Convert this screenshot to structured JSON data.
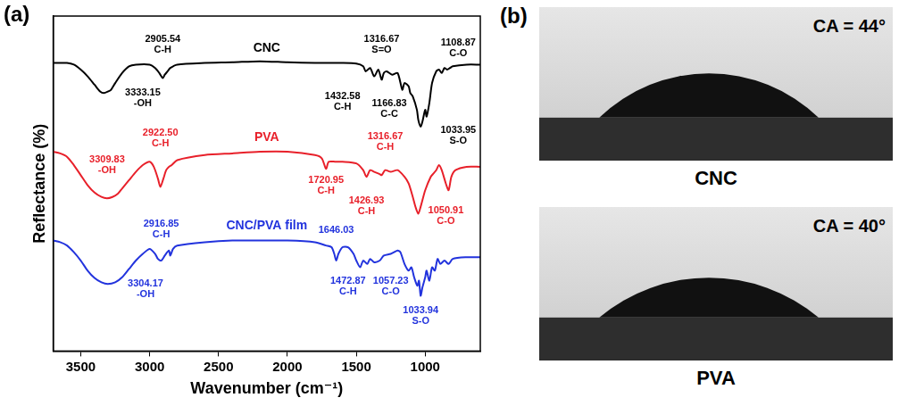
{
  "chart_data": {
    "type": "line",
    "panel": "(a)",
    "x_label": "Wavenumber (cm⁻¹)",
    "y_label": "Reflectance (%)",
    "xlim": [
      3700,
      600
    ],
    "xticks": [
      3500,
      3000,
      2500,
      2000,
      1500,
      1000
    ],
    "ylim": [
      0,
      100
    ],
    "tick_labels": "x",
    "grid": false,
    "series": [
      {
        "name": "CNC",
        "color": "#000000",
        "x": [
          3700,
          3600,
          3550,
          3500,
          3450,
          3400,
          3360,
          3333,
          3300,
          3280,
          3250,
          3200,
          3150,
          3100,
          3000,
          2960,
          2930,
          2905,
          2890,
          2870,
          2850,
          2800,
          2600,
          2400,
          2200,
          2000,
          1800,
          1600,
          1500,
          1450,
          1432,
          1400,
          1370,
          1340,
          1316,
          1300,
          1280,
          1240,
          1200,
          1166,
          1150,
          1120,
          1108,
          1090,
          1060,
          1050,
          1033,
          1020,
          1000,
          990,
          970,
          950,
          920,
          900,
          880,
          860,
          840,
          820,
          800,
          700,
          600
        ],
        "values": [
          86,
          86,
          85.5,
          84,
          82,
          79.5,
          77.5,
          77,
          77.5,
          78,
          80,
          83,
          85,
          85.5,
          85.5,
          84.5,
          83,
          81.5,
          82.5,
          83.5,
          84.5,
          85.5,
          86,
          86.2,
          86.5,
          86.2,
          86,
          86,
          85.8,
          85,
          83.5,
          84.5,
          82,
          84,
          81,
          83,
          83.5,
          82.5,
          83,
          78,
          80,
          79,
          77,
          76,
          72,
          69,
          67,
          68.5,
          72,
          70,
          74,
          80,
          83.5,
          84,
          83,
          84.5,
          84,
          84.5,
          85,
          85.5,
          85.5
        ],
        "annotations": [
          {
            "text": [
              "3333.15",
              "-OH"
            ],
            "x": 3050,
            "y": 77
          },
          {
            "text": [
              "2905.54",
              "C-H"
            ],
            "x": 2905,
            "y": 93
          },
          {
            "text": [
              "1432.58",
              "C-H"
            ],
            "x": 1600,
            "y": 76
          },
          {
            "text": [
              "1316.67",
              "S=O"
            ],
            "x": 1316,
            "y": 93
          },
          {
            "text": [
              "1166.83",
              "C-C"
            ],
            "x": 1260,
            "y": 74
          },
          {
            "text": [
              "1108.87",
              "C-O"
            ],
            "x": 760,
            "y": 92
          },
          {
            "text": [
              "1033.95",
              "S-O"
            ],
            "x": 760,
            "y": 66
          }
        ]
      },
      {
        "name": "PVA",
        "color": "#e8202a",
        "x": [
          3700,
          3650,
          3600,
          3550,
          3500,
          3450,
          3400,
          3350,
          3310,
          3270,
          3230,
          3200,
          3150,
          3100,
          3050,
          3000,
          2970,
          2940,
          2922,
          2900,
          2880,
          2860,
          2840,
          2800,
          2600,
          2400,
          2200,
          2000,
          1800,
          1750,
          1720,
          1700,
          1650,
          1600,
          1500,
          1450,
          1426,
          1400,
          1370,
          1330,
          1316,
          1290,
          1250,
          1200,
          1150,
          1120,
          1090,
          1070,
          1050,
          1030,
          1000,
          960,
          940,
          920,
          900,
          880,
          850,
          830,
          810,
          780,
          700,
          600
        ],
        "values": [
          59.5,
          59,
          58,
          55.5,
          52.5,
          49.5,
          47.3,
          46,
          45.6,
          46,
          47,
          48.5,
          51,
          53.5,
          55.5,
          56.5,
          55,
          51.5,
          49,
          51.5,
          54,
          55,
          55.5,
          57,
          58.5,
          59,
          59.5,
          59.5,
          58.5,
          57.5,
          54.4,
          56.5,
          56.5,
          56.5,
          56,
          54,
          52,
          54,
          53.5,
          52.8,
          52.5,
          54,
          53.5,
          54,
          52,
          50,
          46,
          43,
          41,
          43.5,
          48,
          52,
          53,
          54,
          55.5,
          54,
          50,
          48,
          52,
          54,
          55,
          55
        ],
        "annotations": [
          {
            "text": [
              "3309.83",
              "-OH"
            ],
            "x": 3309,
            "y": 57
          },
          {
            "text": [
              "2922.50",
              "C-H"
            ],
            "x": 2922,
            "y": 65
          },
          {
            "text": [
              "1720.95",
              "C-H"
            ],
            "x": 1720,
            "y": 51
          },
          {
            "text": [
              "1426.93",
              "C-H"
            ],
            "x": 1426,
            "y": 45
          },
          {
            "text": [
              "1316.67",
              "C-H"
            ],
            "x": 1290,
            "y": 64
          },
          {
            "text": [
              "1050.91",
              "C-O"
            ],
            "x": 850,
            "y": 42
          }
        ]
      },
      {
        "name": "CNC/PVA film",
        "color": "#2233dd",
        "x": [
          3700,
          3650,
          3600,
          3550,
          3500,
          3450,
          3400,
          3350,
          3304,
          3250,
          3200,
          3150,
          3100,
          3050,
          3000,
          2960,
          2940,
          2916,
          2890,
          2860,
          2850,
          2830,
          2800,
          2600,
          2400,
          2200,
          2000,
          1800,
          1720,
          1680,
          1660,
          1646,
          1630,
          1600,
          1560,
          1520,
          1500,
          1472,
          1450,
          1420,
          1400,
          1370,
          1330,
          1300,
          1250,
          1200,
          1180,
          1150,
          1120,
          1100,
          1080,
          1057,
          1045,
          1033,
          1020,
          1000,
          990,
          970,
          950,
          930,
          910,
          890,
          860,
          830,
          800,
          700,
          600
        ],
        "values": [
          33,
          32.5,
          31.5,
          29.5,
          27,
          24,
          21.8,
          20.5,
          20,
          20.5,
          22,
          24.5,
          27,
          29,
          30.5,
          29,
          27.5,
          27,
          28.5,
          30,
          28.5,
          30.5,
          31.5,
          32.5,
          33,
          33,
          33,
          32.5,
          31.5,
          31,
          29,
          27,
          29,
          31,
          31,
          29,
          27,
          25,
          27,
          26,
          27.5,
          26.5,
          27,
          28.5,
          29,
          30,
          29.5,
          26,
          24,
          25,
          22,
          19.5,
          21,
          16.5,
          19,
          22,
          24,
          21,
          25,
          24,
          27.5,
          26,
          27,
          26,
          27.5,
          28,
          28
        ],
        "annotations": [
          {
            "text": [
              "3304.17",
              "-OH"
            ],
            "x": 3030,
            "y": 20
          },
          {
            "text": [
              "2916.85",
              "C-H"
            ],
            "x": 2916,
            "y": 38
          },
          {
            "text": [
              "1646.03"
            ],
            "x": 1646,
            "y": 36
          },
          {
            "text": [
              "1472.87",
              "C-H"
            ],
            "x": 1560,
            "y": 21
          },
          {
            "text": [
              "1057.23",
              "C-O"
            ],
            "x": 1250,
            "y": 21
          },
          {
            "text": [
              "1033.94",
              "S-O"
            ],
            "x": 1033,
            "y": 12
          }
        ]
      }
    ]
  },
  "photos": {
    "panel": "(b)",
    "items": [
      {
        "caption": "CNC",
        "contact_angle": {
          "value": 44,
          "label": "CA = 44°"
        }
      },
      {
        "caption": "PVA",
        "contact_angle": {
          "value": 40,
          "label": "CA = 40°"
        }
      }
    ]
  }
}
